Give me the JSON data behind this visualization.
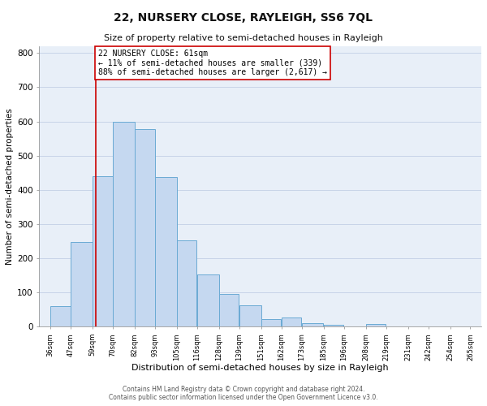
{
  "title": "22, NURSERY CLOSE, RAYLEIGH, SS6 7QL",
  "subtitle": "Size of property relative to semi-detached houses in Rayleigh",
  "xlabel": "Distribution of semi-detached houses by size in Rayleigh",
  "ylabel": "Number of semi-detached properties",
  "bar_edges": [
    36,
    47,
    59,
    70,
    82,
    93,
    105,
    116,
    128,
    139,
    151,
    162,
    173,
    185,
    196,
    208,
    219,
    231,
    242,
    254,
    265
  ],
  "bar_heights": [
    60,
    248,
    440,
    600,
    578,
    437,
    252,
    153,
    97,
    62,
    23,
    26,
    10,
    5,
    0,
    7,
    0,
    0,
    0,
    0
  ],
  "bar_color": "#c5d8f0",
  "bar_edge_color": "#6aaad4",
  "axes_bg_color": "#e8eff8",
  "property_line_x": 61,
  "property_line_color": "#cc0000",
  "annotation_line1": "22 NURSERY CLOSE: 61sqm",
  "annotation_line2": "← 11% of semi-detached houses are smaller (339)",
  "annotation_line3": "88% of semi-detached houses are larger (2,617) →",
  "annotation_box_color": "#ffffff",
  "annotation_box_edge_color": "#cc0000",
  "ylim": [
    0,
    820
  ],
  "xlim_left": 30,
  "xlim_right": 271,
  "tick_labels": [
    "36sqm",
    "47sqm",
    "59sqm",
    "70sqm",
    "82sqm",
    "93sqm",
    "105sqm",
    "116sqm",
    "128sqm",
    "139sqm",
    "151sqm",
    "162sqm",
    "173sqm",
    "185sqm",
    "196sqm",
    "208sqm",
    "219sqm",
    "231sqm",
    "242sqm",
    "254sqm",
    "265sqm"
  ],
  "tick_positions": [
    36,
    47,
    59,
    70,
    82,
    93,
    105,
    116,
    128,
    139,
    151,
    162,
    173,
    185,
    196,
    208,
    219,
    231,
    242,
    254,
    265
  ],
  "yticks": [
    0,
    100,
    200,
    300,
    400,
    500,
    600,
    700,
    800
  ],
  "footer_text": "Contains HM Land Registry data © Crown copyright and database right 2024.\nContains public sector information licensed under the Open Government Licence v3.0.",
  "background_color": "#ffffff",
  "grid_color": "#c8d4e8",
  "title_fontsize": 10,
  "subtitle_fontsize": 8,
  "xlabel_fontsize": 8,
  "ylabel_fontsize": 7.5,
  "tick_fontsize": 6,
  "ytick_fontsize": 7.5,
  "footer_fontsize": 5.5
}
